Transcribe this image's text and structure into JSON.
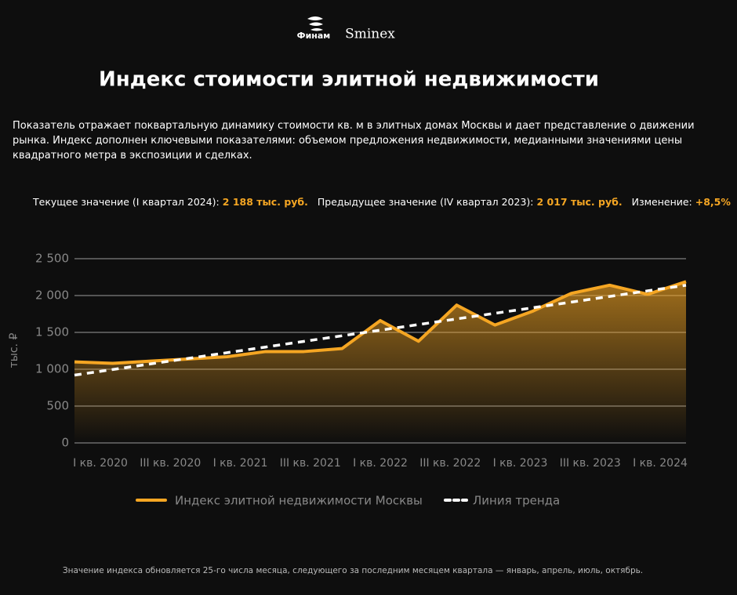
{
  "header": {
    "logos": [
      "Финам",
      "Sminex"
    ]
  },
  "description": "Показатель отражает поквартальную динамику стоимости кв. м в элитных домах Москвы и дает представление о движении рынка. Индекс дополнен ключевыми показателями: объемом предложения недвижимости, медианными значениями цены квадратного метра в экспозиции и сделках.",
  "stats": [
    {
      "label": "Текущее значение (I квартал 2024):",
      "value": "2 188 тыс. руб."
    },
    {
      "label": "Предыдущее значение (IV квартал 2023):",
      "value": "2 017 тыс. руб."
    },
    {
      "label": "Изменение:",
      "value": "+8,5%"
    }
  ],
  "chart_data": {
    "type": "line",
    "title": "Индекс стоимости элитной недвижимости",
    "y_label": "тыс. ₽",
    "categories": [
      "I кв. 2020",
      null,
      "III кв. 2020",
      null,
      "I кв. 2021",
      null,
      "III кв. 2021",
      null,
      "I кв. 2022",
      null,
      "III кв. 2022",
      null,
      "I кв. 2023",
      null,
      "III кв. 2023",
      null,
      "I кв. 2024"
    ],
    "series": [
      {
        "name": "Индекс элитной недвижимости Москвы",
        "color": "#f5a623",
        "values": [
          1100,
          1080,
          1110,
          1140,
          1170,
          1240,
          1240,
          1280,
          1660,
          1380,
          1870,
          1600,
          1790,
          2030,
          2140,
          2017,
          2188
        ]
      },
      {
        "name": "Линия тренда",
        "color": "#ffffff",
        "dashed": true,
        "values": [
          920,
          996,
          1073,
          1149,
          1225,
          1301,
          1378,
          1454,
          1530,
          1606,
          1683,
          1759,
          1835,
          1911,
          1988,
          2064,
          2140
        ]
      }
    ],
    "ylim": [
      0,
      2500
    ],
    "yticks": [
      0,
      500,
      {
        "value": 1000,
        "label": "1 000"
      },
      {
        "value": 1500,
        "label": "1 500"
      },
      {
        "value": 2000,
        "label": "2 000"
      },
      {
        "value": 2500,
        "label": "2 500"
      }
    ],
    "grid": true
  },
  "footer": "Значение индекса обновляется 25-го числа месяца, следующего за последним месяцем квартала — январь, апрель, июль, октябрь."
}
